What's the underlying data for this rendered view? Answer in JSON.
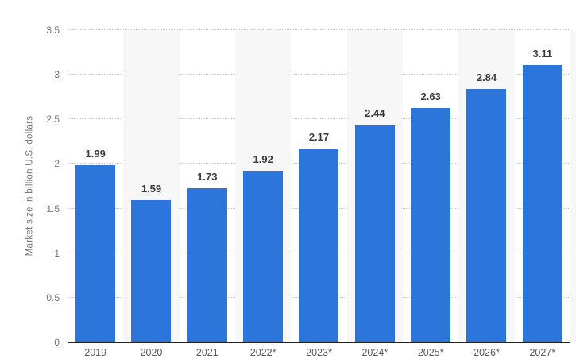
{
  "chart_data": {
    "type": "bar",
    "title": "",
    "categories": [
      "2019",
      "2020",
      "2021",
      "2022*",
      "2023*",
      "2024*",
      "2025*",
      "2026*",
      "2027*"
    ],
    "values": [
      1.99,
      1.59,
      1.73,
      1.92,
      2.17,
      2.44,
      2.63,
      2.84,
      3.11
    ],
    "value_label_decimals": 2,
    "xlabel": "",
    "ylabel": "Market size in billion U.S. dollars",
    "ylim": [
      0,
      3.5
    ],
    "ytick_labels": [
      "0",
      "0.5",
      "1",
      "1.5",
      "2",
      "2.5",
      "3",
      "3.5"
    ],
    "grid": "horizontal-dotted",
    "legend": "none",
    "plot_background": "alternating light column stripes",
    "striped_categories": [
      "2020",
      "2022*",
      "2024*",
      "2026*"
    ],
    "colors": {
      "bar": "#2c75db",
      "stripe": "#f7f7f7",
      "gridline": "#cccccc",
      "axis_line": "#222222",
      "value_label": "#3b3b3b",
      "tick_label": "#767676",
      "category_label": "#595959",
      "background": "#ffffff"
    }
  }
}
